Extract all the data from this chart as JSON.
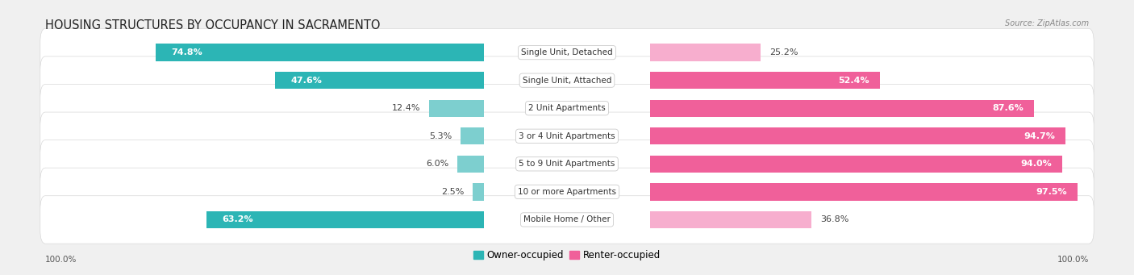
{
  "title": "HOUSING STRUCTURES BY OCCUPANCY IN SACRAMENTO",
  "source": "Source: ZipAtlas.com",
  "categories": [
    "Single Unit, Detached",
    "Single Unit, Attached",
    "2 Unit Apartments",
    "3 or 4 Unit Apartments",
    "5 to 9 Unit Apartments",
    "10 or more Apartments",
    "Mobile Home / Other"
  ],
  "owner_pct": [
    74.8,
    47.6,
    12.4,
    5.3,
    6.0,
    2.5,
    63.2
  ],
  "renter_pct": [
    25.2,
    52.4,
    87.6,
    94.7,
    94.0,
    97.5,
    36.8
  ],
  "owner_color": "#2cb5b5",
  "renter_color": "#f0609a",
  "owner_color_light": "#7dcfcf",
  "renter_color_light": "#f7aece",
  "owner_label": "Owner-occupied",
  "renter_label": "Renter-occupied",
  "bg_color": "#f0f0f0",
  "bar_bg_color": "#ffffff",
  "bar_border_color": "#d8d8d8",
  "title_fontsize": 10.5,
  "label_fontsize": 7.5,
  "value_fontsize": 8,
  "axis_label_left": "100.0%",
  "axis_label_right": "100.0%"
}
